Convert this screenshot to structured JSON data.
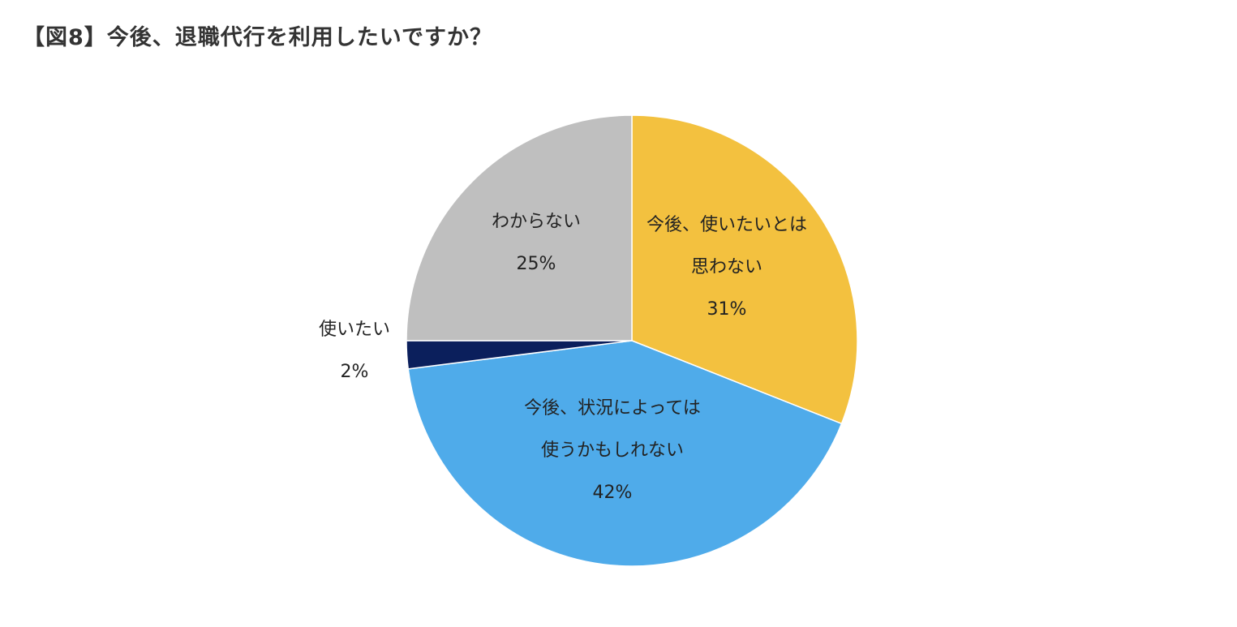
{
  "title": "【図8】今後、退職代行を利用したいですか？",
  "colors": {
    "slice_not_want": "#F3C13F",
    "slice_maybe": "#4FABEA",
    "slice_want": "#0B1F5C",
    "slice_unknown": "#BFBFBF",
    "slice_border": "#FFFFFF",
    "label_text": "#222222"
  },
  "chart_data": {
    "type": "pie",
    "title": "【図8】今後、退職代行を利用したいですか？",
    "start": "12 o'clock, clockwise",
    "slices": [
      {
        "key": "not_want",
        "label_lines": [
          "今後、使いたいとは",
          "思わない"
        ],
        "percent_label": "31%",
        "value": 31,
        "color": "#F3C13F",
        "label_placement": "inside"
      },
      {
        "key": "maybe",
        "label_lines": [
          "今後、状況によっては",
          "使うかもしれない"
        ],
        "percent_label": "42%",
        "value": 42,
        "color": "#4FABEA",
        "label_placement": "inside"
      },
      {
        "key": "want",
        "label_lines": [
          "使いたい"
        ],
        "percent_label": "2%",
        "value": 2,
        "color": "#0B1F5C",
        "label_placement": "outside-left"
      },
      {
        "key": "unknown",
        "label_lines": [
          "わからない"
        ],
        "percent_label": "25%",
        "value": 25,
        "color": "#BFBFBF",
        "label_placement": "inside"
      }
    ]
  }
}
